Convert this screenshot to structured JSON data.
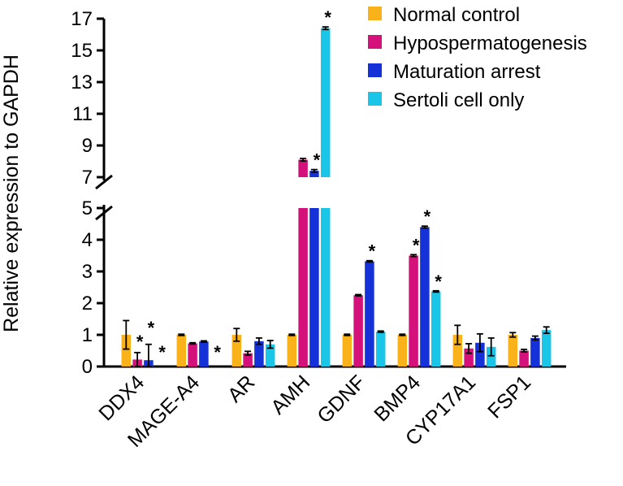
{
  "chart_data": {
    "type": "bar",
    "title": "",
    "xlabel": "",
    "ylabel": "Relative expression to GAPDH",
    "categories": [
      "DDX4",
      "MAGE-A4",
      "AR",
      "AMH",
      "GDNF",
      "BMP4",
      "CYP17A1",
      "FSP1"
    ],
    "series": [
      {
        "name": "Normal control",
        "color": "#F9B21A",
        "values": [
          1.0,
          1.0,
          1.0,
          1.0,
          1.0,
          1.0,
          1.0,
          1.0
        ],
        "errors": [
          0.45,
          0.02,
          0.2,
          0.02,
          0.02,
          0.02,
          0.3,
          0.07
        ],
        "significant": [
          false,
          false,
          false,
          false,
          false,
          false,
          false,
          false
        ]
      },
      {
        "name": "Hypospermatogenesis",
        "color": "#D4117A",
        "values": [
          0.22,
          0.73,
          0.42,
          8.1,
          2.25,
          3.5,
          0.57,
          0.5
        ],
        "errors": [
          0.22,
          0.02,
          0.06,
          0.08,
          0.02,
          0.03,
          0.15,
          0.04
        ],
        "significant": [
          true,
          false,
          false,
          false,
          false,
          true,
          false,
          false
        ]
      },
      {
        "name": "Maturation arrest",
        "color": "#1432D8",
        "values": [
          0.2,
          0.79,
          0.8,
          7.4,
          3.32,
          4.4,
          0.75,
          0.9
        ],
        "errors": [
          0.5,
          0.02,
          0.1,
          0.08,
          0.02,
          0.03,
          0.28,
          0.06
        ],
        "significant": [
          true,
          false,
          false,
          true,
          true,
          true,
          false,
          false
        ]
      },
      {
        "name": "Sertoli cell only",
        "color": "#1AC6E8",
        "values": [
          0.0,
          0.0,
          0.7,
          16.4,
          1.1,
          2.37,
          0.62,
          1.15
        ],
        "errors": [
          0.0,
          0.0,
          0.12,
          0.08,
          0.02,
          0.02,
          0.28,
          0.1
        ],
        "significant": [
          true,
          true,
          false,
          true,
          false,
          true,
          false,
          false
        ]
      }
    ],
    "y_axis_lower": {
      "range": [
        0,
        5
      ],
      "ticks": [
        "0",
        "1",
        "2",
        "3",
        "4",
        "5"
      ]
    },
    "y_axis_upper": {
      "range": [
        7,
        17
      ],
      "ticks": [
        "7",
        "9",
        "11",
        "13",
        "15",
        "17"
      ]
    },
    "axis_break": "between 5 and 7",
    "legend_position": "top-right",
    "significance_marker": "*",
    "grid": false
  }
}
